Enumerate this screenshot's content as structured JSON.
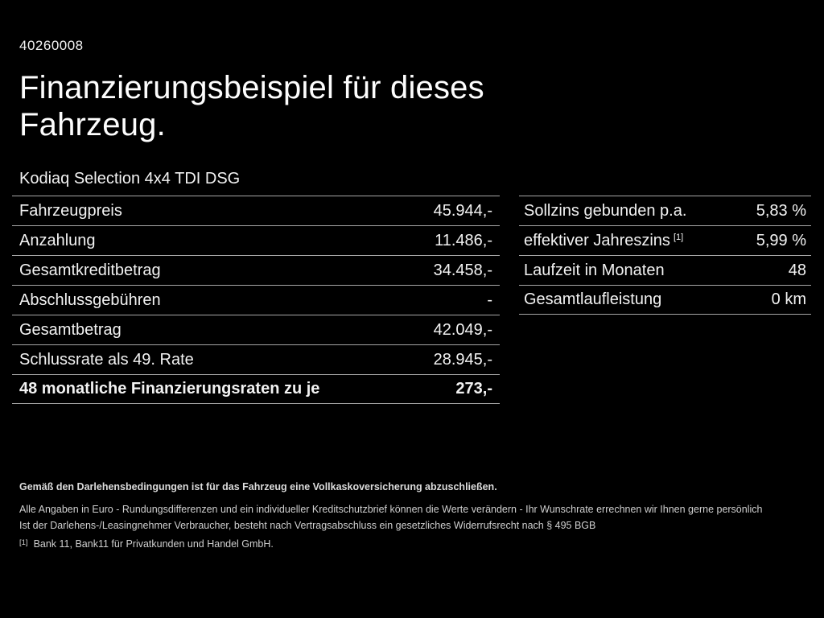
{
  "header": {
    "id_number": "40260008",
    "title_line1": "Finanzierungsbeispiel für dieses",
    "title_line2": "Fahrzeug.",
    "vehicle_name": "Kodiaq Selection 4x4 TDI DSG"
  },
  "left_table": {
    "rows": [
      {
        "label": "Fahrzeugpreis",
        "value": "45.944,-"
      },
      {
        "label": "Anzahlung",
        "value": "11.486,-"
      },
      {
        "label": "Gesamtkreditbetrag",
        "value": "34.458,-"
      },
      {
        "label": "Abschlussgebühren",
        "value": "-"
      },
      {
        "label": "Gesamtbetrag",
        "value": "42.049,-"
      },
      {
        "label": "Schlussrate als 49. Rate",
        "value": "28.945,-"
      },
      {
        "label": "48 monatliche Finanzierungsraten zu je",
        "value": "273,-"
      }
    ]
  },
  "right_table": {
    "rows": [
      {
        "label": "Sollzins gebunden p.a.",
        "sup_marker": "",
        "value": "5,83 %"
      },
      {
        "label": "effektiver Jahreszins",
        "sup_marker": "[1]",
        "value": "5,99 %"
      },
      {
        "label": "Laufzeit in Monaten",
        "sup_marker": "",
        "value": "48"
      },
      {
        "label": "Gesamtlaufleistung",
        "sup_marker": "",
        "value": "0 km"
      }
    ]
  },
  "footer": {
    "line1": "Gemäß den Darlehensbedingungen ist für das Fahrzeug eine Vollkaskoversicherung abzuschließen.",
    "line2": "Alle Angaben in Euro - Rundungsdifferenzen und ein individueller Kreditschutzbrief können die Werte verändern - Ihr Wunschrate errechnen wir Ihnen gerne persönlich",
    "line3": "Ist der Darlehens-/Leasingnehmer Verbraucher, besteht nach Vertragsabschluss ein gesetzliches Widerrufsrecht nach § 495 BGB",
    "footnote_marker": "[1]",
    "footnote_text": "Bank 11, Bank11 für Privatkunden und Handel GmbH."
  },
  "colors": {
    "background": "#000000",
    "text": "#f2f2f2",
    "heading_text": "#fdfdfd",
    "divider": "#a6a6a6",
    "footer_text": "#cfcfcf"
  }
}
